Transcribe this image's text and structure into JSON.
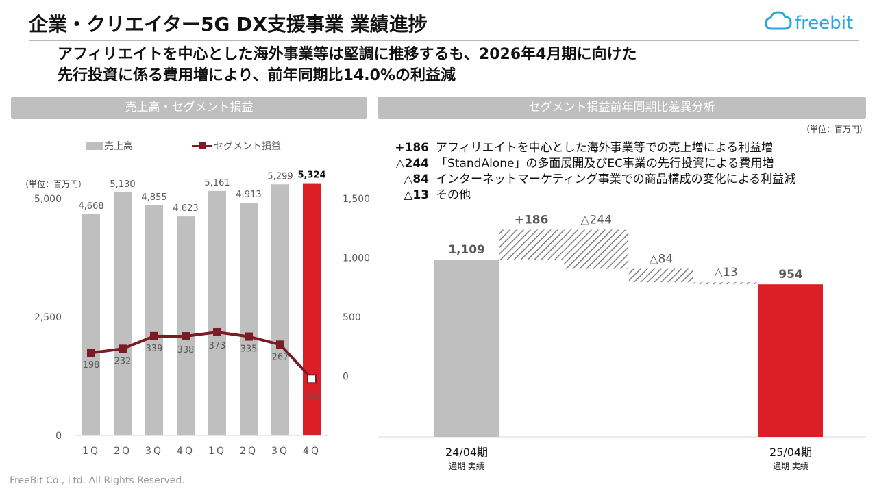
{
  "header": {
    "title": "企業・クリエイター5G DX支援事業 業績進捗",
    "brand": "freebit",
    "subtitle_line1": "アフィリエイトを中心とした海外事業等は堅調に推移するも、2026年4月期に向けた",
    "subtitle_line2": "先行投資に係る費用増により、前年同期比14.0%の利益減"
  },
  "left_panel": {
    "heading": "売上高・セグメント損益",
    "legend_sales": "売上高",
    "legend_profit": "セグメント損益",
    "unit": "（単位：百万円）"
  },
  "right_panel": {
    "heading": "セグメント損益前年同期比差異分析",
    "unit": "（単位：百万円）",
    "items": [
      {
        "num": "+186",
        "text": "アフィリエイトを中心とした海外事業等での売上増による利益増"
      },
      {
        "num": "△244",
        "text": "「StandAlone」の多面展開及びEC事業の先行投資による費用増"
      },
      {
        "num": "△84",
        "text": "インターネットマーケティング事業での商品構成の変化による利益減"
      },
      {
        "num": "△13",
        "text": "その他"
      }
    ]
  },
  "footer": "FreeBit Co., Ltd. All Rights Reserved.",
  "colors": {
    "gray": "#bfbfbf",
    "red": "#dc1f26",
    "line": "#7b1c24",
    "text": "#595959"
  },
  "chart_data": [
    {
      "type": "bar",
      "categories": [
        "1Q",
        "2Q",
        "3Q",
        "4Q",
        "1Q",
        "2Q",
        "3Q",
        "4Q"
      ],
      "series": [
        {
          "name": "売上高",
          "type": "bar",
          "axis": "left",
          "values": [
            4668,
            5130,
            4855,
            4623,
            5161,
            4913,
            5299,
            5324
          ],
          "labels": [
            "4,668",
            "5,130",
            "4,855",
            "4,623",
            "5,161",
            "4,913",
            "5,299",
            "5,324"
          ]
        },
        {
          "name": "セグメント損益",
          "type": "line",
          "axis": "right",
          "values": [
            198,
            232,
            339,
            338,
            373,
            335,
            267,
            -22
          ],
          "labels": [
            "198",
            "232",
            "339",
            "338",
            "373",
            "335",
            "267",
            "△22"
          ]
        }
      ],
      "highlight_index": 7,
      "left_axis": {
        "ylim": [
          0,
          5000
        ],
        "ticks": [
          0,
          2500,
          5000
        ],
        "tick_labels": [
          "0",
          "2,500",
          "5,000"
        ]
      },
      "right_axis": {
        "ylim": [
          -500,
          1500
        ],
        "ticks": [
          0,
          500,
          1000,
          1500
        ],
        "tick_labels": [
          "0",
          "500",
          "1,000",
          "1,500"
        ]
      }
    },
    {
      "type": "bar",
      "subtype": "waterfall",
      "steps": [
        {
          "kind": "total",
          "value": 1109,
          "label": "1,109"
        },
        {
          "kind": "increase",
          "value": 186,
          "label": "+186"
        },
        {
          "kind": "decrease",
          "value": -244,
          "label": "△244"
        },
        {
          "kind": "decrease",
          "value": -84,
          "label": "△84"
        },
        {
          "kind": "decrease",
          "value": -13,
          "label": "△13"
        },
        {
          "kind": "total",
          "value": 954,
          "label": "954"
        }
      ],
      "x_labels": [
        {
          "index": 0,
          "line1": "24/04期",
          "line2": "通期 実績"
        },
        {
          "index": 5,
          "line1": "25/04期",
          "line2": "通期 実績"
        }
      ]
    }
  ]
}
